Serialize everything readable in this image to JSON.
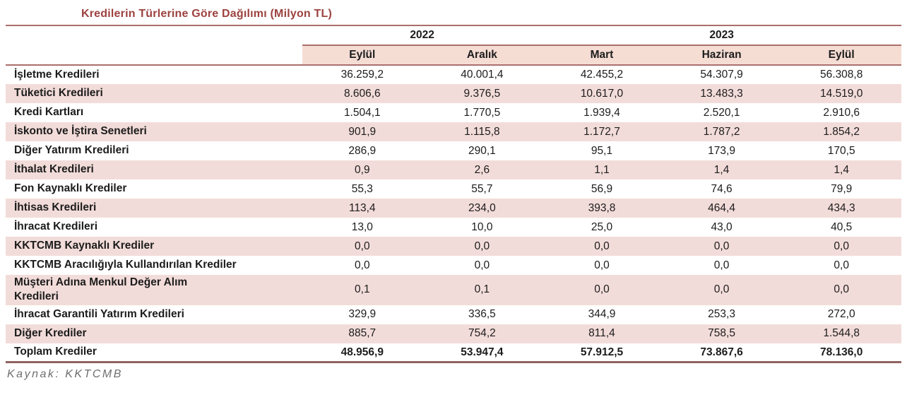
{
  "title": "Kredilerin Türlerine Göre Dağılımı (Milyon TL)",
  "table": {
    "year_groups": [
      {
        "label": "2022",
        "span": 2
      },
      {
        "label": "2023",
        "span": 3
      }
    ],
    "columns": [
      "Eylül",
      "Aralık",
      "Mart",
      "Haziran",
      "Eylül"
    ],
    "rows": [
      {
        "label": "İşletme Kredileri",
        "values": [
          "36.259,2",
          "40.001,4",
          "42.455,2",
          "54.307,9",
          "56.308,8"
        ]
      },
      {
        "label": "Tüketici Kredileri",
        "values": [
          "8.606,6",
          "9.376,5",
          "10.617,0",
          "13.483,3",
          "14.519,0"
        ]
      },
      {
        "label": "Kredi Kartları",
        "values": [
          "1.504,1",
          "1.770,5",
          "1.939,4",
          "2.520,1",
          "2.910,6"
        ]
      },
      {
        "label": "İskonto ve İştira Senetleri",
        "values": [
          "901,9",
          "1.115,8",
          "1.172,7",
          "1.787,2",
          "1.854,2"
        ]
      },
      {
        "label": "Diğer Yatırım Kredileri",
        "values": [
          "286,9",
          "290,1",
          "95,1",
          "173,9",
          "170,5"
        ]
      },
      {
        "label": "İthalat Kredileri",
        "values": [
          "0,9",
          "2,6",
          "1,1",
          "1,4",
          "1,4"
        ]
      },
      {
        "label": "Fon Kaynaklı Krediler",
        "values": [
          "55,3",
          "55,7",
          "56,9",
          "74,6",
          "79,9"
        ]
      },
      {
        "label": "İhtisas Kredileri",
        "values": [
          "113,4",
          "234,0",
          "393,8",
          "464,4",
          "434,3"
        ]
      },
      {
        "label": "İhracat Kredileri",
        "values": [
          "13,0",
          "10,0",
          "25,0",
          "43,0",
          "40,5"
        ]
      },
      {
        "label": "KKTCMB Kaynaklı Krediler",
        "values": [
          "0,0",
          "0,0",
          "0,0",
          "0,0",
          "0,0"
        ]
      },
      {
        "label": "KKTCMB Aracılığıyla Kullandırılan Krediler",
        "values": [
          "0,0",
          "0,0",
          "0,0",
          "0,0",
          "0,0"
        ]
      },
      {
        "label": "Müşteri Adına Menkul Değer Alım\nKredileri",
        "values": [
          "0,1",
          "0,1",
          "0,0",
          "0,0",
          "0,0"
        ]
      },
      {
        "label": "İhracat Garantili Yatırım Kredileri",
        "values": [
          "329,9",
          "336,5",
          "344,9",
          "253,3",
          "272,0"
        ]
      },
      {
        "label": "Diğer Krediler",
        "values": [
          "885,7",
          "754,2",
          "811,4",
          "758,5",
          "1.544,8"
        ]
      },
      {
        "label": "Toplam Krediler",
        "values": [
          "48.956,9",
          "53.947,4",
          "57.912,5",
          "73.867,6",
          "78.136,0"
        ],
        "total": true
      }
    ]
  },
  "footer": {
    "source_label": "Kaynak: KKTCMB"
  },
  "colors": {
    "accent": "#9c423f",
    "line": "#aa6f6b",
    "thick_line": "#8f6260",
    "row_pink": "#f2dcd9",
    "header_pink": "#f5ddd4",
    "text": "#1c1c1c",
    "source_text": "#6e6e6e"
  }
}
